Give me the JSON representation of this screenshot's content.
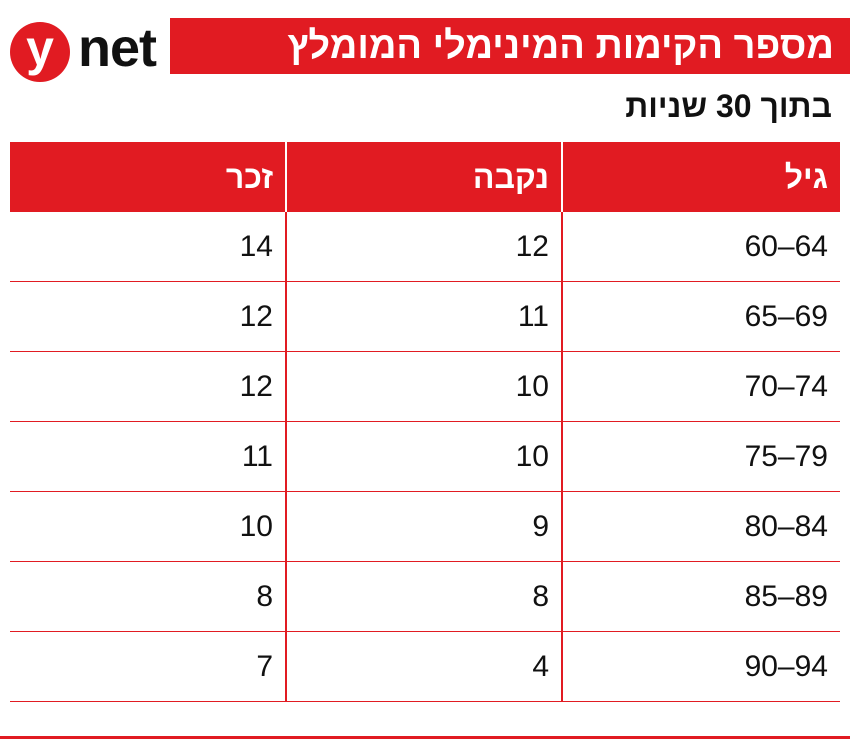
{
  "logo": {
    "letter": "y",
    "word": "net"
  },
  "header": {
    "title": "מספר הקימות המינימלי המומלץ",
    "subtitle": "בתוך 30 שניות"
  },
  "chart_data": {
    "type": "table",
    "columns": [
      "גיל",
      "נקבה",
      "זכר"
    ],
    "rows": [
      [
        "60–64",
        12,
        14
      ],
      [
        "65–69",
        11,
        12
      ],
      [
        "70–74",
        10,
        12
      ],
      [
        "75–79",
        10,
        11
      ],
      [
        "80–84",
        9,
        10
      ],
      [
        "85–89",
        8,
        8
      ],
      [
        "90–94",
        4,
        7
      ]
    ]
  },
  "colors": {
    "accent": "#e11b22",
    "text": "#111111",
    "background": "#ffffff"
  }
}
